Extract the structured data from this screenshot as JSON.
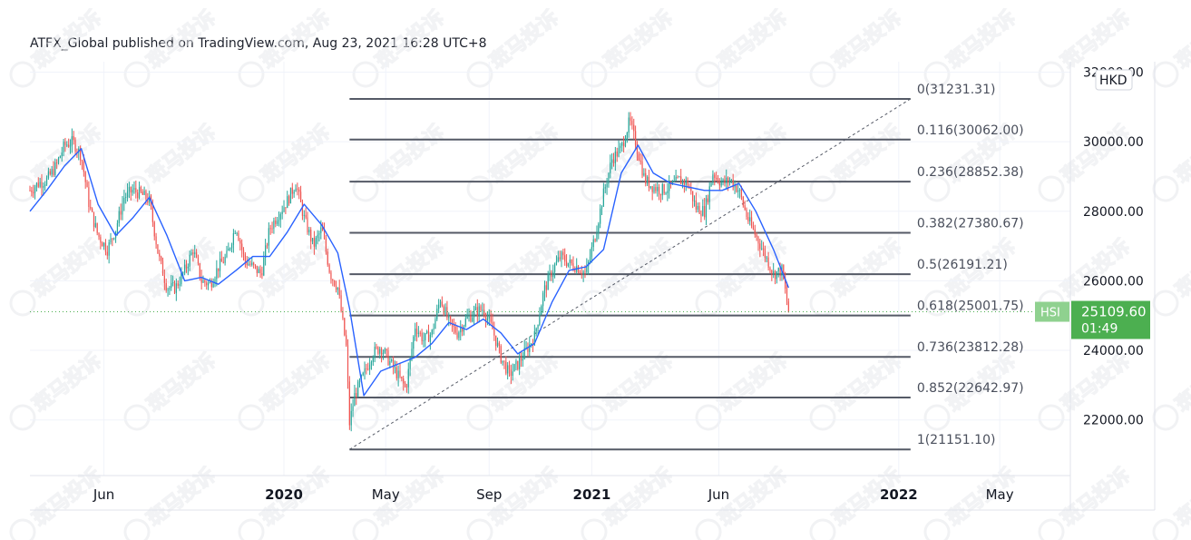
{
  "header": {
    "published_by": "ATFX_Global published on TradingView.com, Aug 23, 2021 16:28 UTC+8"
  },
  "watermark": {
    "text": "斑马投诉"
  },
  "colors": {
    "fib_line": "#555a66",
    "trend_line": "#555a66",
    "up": "#26a69a",
    "down": "#ef5350",
    "ma": "#2962ff",
    "price_tag_bg": "#4caf50",
    "symbol_tag_bg": "#8fd18f",
    "grid": "#f0f3fa",
    "axis_text": "#131722"
  },
  "chart_data": {
    "type": "line",
    "symbol": "HSI",
    "currency": "HKD",
    "last_price": "25109.60",
    "countdown": "01:49",
    "y_axis": {
      "ticks": [
        "22000.00",
        "24000.00",
        "26000.00",
        "28000.00",
        "30000.00",
        "32000.00"
      ],
      "tick_values": [
        22000,
        24000,
        26000,
        28000,
        30000,
        32000
      ],
      "ylim": [
        20400,
        32300
      ]
    },
    "x_axis": {
      "labels": [
        {
          "text": "Jun",
          "date": "2019-06-01",
          "bold": false
        },
        {
          "text": "2020",
          "date": "2020-01-01",
          "bold": true
        },
        {
          "text": "May",
          "date": "2020-05-01",
          "bold": false
        },
        {
          "text": "Sep",
          "date": "2020-09-01",
          "bold": false
        },
        {
          "text": "2021",
          "date": "2021-01-01",
          "bold": true
        },
        {
          "text": "Jun",
          "date": "2021-06-01",
          "bold": false
        },
        {
          "text": "2022",
          "date": "2022-01-01",
          "bold": true
        },
        {
          "text": "May",
          "date": "2022-05-01",
          "bold": false
        }
      ],
      "xlim": [
        "2019-03-05",
        "2022-07-24"
      ]
    },
    "fibonacci": {
      "start": {
        "date": "2020-03-19",
        "value": 21151.1
      },
      "end": {
        "date": "2022-01-15",
        "value": 31231.31
      },
      "levels": [
        {
          "label": "0(31231.31)",
          "value": 31231.31
        },
        {
          "label": "0.116(30062.00)",
          "value": 30062.0
        },
        {
          "label": "0.236(28852.38)",
          "value": 28852.38
        },
        {
          "label": "0.382(27380.67)",
          "value": 27380.67
        },
        {
          "label": "0.5(26191.21)",
          "value": 26191.21
        },
        {
          "label": "0.618(25001.75)",
          "value": 25001.75
        },
        {
          "label": "0.736(23812.28)",
          "value": 23812.28
        },
        {
          "label": "0.852(22642.97)",
          "value": 22642.97
        },
        {
          "label": "1(21151.10)",
          "value": 21151.1
        }
      ]
    },
    "series": [
      {
        "name": "HSI",
        "dates": [
          "2019-03-05",
          "2019-03-15",
          "2019-03-25",
          "2019-04-05",
          "2019-04-15",
          "2019-04-25",
          "2019-05-05",
          "2019-05-15",
          "2019-05-25",
          "2019-06-05",
          "2019-06-15",
          "2019-06-25",
          "2019-07-05",
          "2019-07-15",
          "2019-07-25",
          "2019-08-05",
          "2019-08-15",
          "2019-08-25",
          "2019-09-05",
          "2019-09-15",
          "2019-09-25",
          "2019-10-05",
          "2019-10-15",
          "2019-10-25",
          "2019-11-05",
          "2019-11-15",
          "2019-11-25",
          "2019-12-05",
          "2019-12-15",
          "2019-12-25",
          "2020-01-05",
          "2020-01-15",
          "2020-01-25",
          "2020-02-05",
          "2020-02-15",
          "2020-02-25",
          "2020-03-05",
          "2020-03-15",
          "2020-03-19",
          "2020-03-25",
          "2020-04-05",
          "2020-04-15",
          "2020-04-25",
          "2020-05-05",
          "2020-05-15",
          "2020-05-25",
          "2020-06-05",
          "2020-06-15",
          "2020-06-25",
          "2020-07-05",
          "2020-07-15",
          "2020-07-25",
          "2020-08-05",
          "2020-08-15",
          "2020-08-25",
          "2020-09-05",
          "2020-09-15",
          "2020-09-25",
          "2020-10-05",
          "2020-10-15",
          "2020-10-25",
          "2020-11-05",
          "2020-11-15",
          "2020-11-25",
          "2020-12-05",
          "2020-12-15",
          "2020-12-25",
          "2021-01-05",
          "2021-01-15",
          "2021-01-25",
          "2021-02-05",
          "2021-02-15",
          "2021-02-25",
          "2021-03-05",
          "2021-03-15",
          "2021-03-25",
          "2021-04-05",
          "2021-04-15",
          "2021-04-25",
          "2021-05-05",
          "2021-05-15",
          "2021-05-25",
          "2021-06-05",
          "2021-06-15",
          "2021-06-25",
          "2021-07-05",
          "2021-07-15",
          "2021-07-25",
          "2021-08-05",
          "2021-08-15",
          "2021-08-23"
        ],
        "values": [
          28600,
          28800,
          28900,
          29300,
          29900,
          30000,
          29600,
          28100,
          27300,
          26900,
          27500,
          28400,
          28600,
          28500,
          28300,
          26700,
          25800,
          25800,
          26300,
          26900,
          26000,
          25900,
          26400,
          26700,
          27600,
          26600,
          26400,
          26200,
          27500,
          27900,
          28300,
          28800,
          27800,
          27000,
          27500,
          26200,
          25800,
          24100,
          21900,
          22700,
          23300,
          23900,
          24100,
          23700,
          23300,
          22900,
          24700,
          24300,
          24500,
          25500,
          24800,
          24500,
          24900,
          25100,
          25200,
          24600,
          23800,
          23300,
          23600,
          24000,
          24400,
          25700,
          26300,
          26700,
          26500,
          26400,
          26200,
          27300,
          28500,
          29500,
          29800,
          30600,
          29700,
          28900,
          28700,
          28600,
          28700,
          28900,
          28800,
          28100,
          28000,
          29100,
          28800,
          28900,
          28600,
          27800,
          27300,
          26800,
          26200,
          26300,
          25109.6
        ]
      },
      {
        "name": "MA",
        "dates": [
          "2019-03-05",
          "2019-03-25",
          "2019-04-15",
          "2019-05-05",
          "2019-05-25",
          "2019-06-15",
          "2019-07-05",
          "2019-07-25",
          "2019-08-15",
          "2019-09-05",
          "2019-09-25",
          "2019-10-15",
          "2019-11-05",
          "2019-11-25",
          "2019-12-15",
          "2020-01-05",
          "2020-01-25",
          "2020-02-15",
          "2020-03-05",
          "2020-03-19",
          "2020-04-05",
          "2020-04-25",
          "2020-05-15",
          "2020-06-05",
          "2020-06-25",
          "2020-07-15",
          "2020-08-05",
          "2020-08-25",
          "2020-09-15",
          "2020-10-05",
          "2020-10-25",
          "2020-11-15",
          "2020-12-05",
          "2020-12-25",
          "2021-01-15",
          "2021-02-05",
          "2021-02-25",
          "2021-03-15",
          "2021-04-05",
          "2021-04-25",
          "2021-05-15",
          "2021-06-05",
          "2021-06-25",
          "2021-07-15",
          "2021-08-05",
          "2021-08-23"
        ],
        "values": [
          28000,
          28600,
          29300,
          29800,
          28200,
          27300,
          27800,
          28400,
          27300,
          26000,
          26100,
          25900,
          26300,
          26700,
          26700,
          27400,
          28200,
          27600,
          26800,
          25200,
          22700,
          23400,
          23600,
          23800,
          24200,
          24800,
          24600,
          24900,
          24500,
          23900,
          24200,
          25400,
          26300,
          26400,
          26900,
          29100,
          29900,
          29100,
          28800,
          28700,
          28600,
          28600,
          28800,
          28000,
          26900,
          25800
        ]
      }
    ]
  }
}
